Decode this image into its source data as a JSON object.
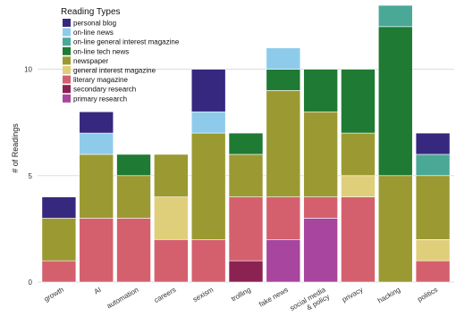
{
  "chart_data": {
    "type": "bar",
    "stacked": true,
    "categories": [
      "growth",
      "AI",
      "automation",
      "careers",
      "sexism",
      "trolling",
      "fake news",
      "social media\n& policy",
      "privacy",
      "hacking",
      "politics"
    ],
    "series": [
      {
        "name": "primary research",
        "color": "#a8459e",
        "values": [
          0,
          0,
          0,
          0,
          0,
          0,
          2,
          3,
          0,
          0,
          0
        ]
      },
      {
        "name": "secondary research",
        "color": "#8b2252",
        "values": [
          0,
          0,
          0,
          0,
          0,
          1,
          0,
          0,
          0,
          0,
          0
        ]
      },
      {
        "name": "literary magazine",
        "color": "#d4606e",
        "values": [
          1,
          3,
          3,
          2,
          2,
          3,
          2,
          1,
          4,
          0,
          1
        ]
      },
      {
        "name": "general interest magazine",
        "color": "#e0cf7a",
        "values": [
          0,
          0,
          0,
          2,
          0,
          0,
          0,
          0,
          1,
          0,
          1
        ]
      },
      {
        "name": "newspaper",
        "color": "#9b9a32",
        "values": [
          2,
          3,
          2,
          2,
          5,
          2,
          5,
          4,
          2,
          5,
          3
        ]
      },
      {
        "name": "on-line tech news",
        "color": "#1f7a33",
        "values": [
          0,
          0,
          1,
          0,
          0,
          1,
          1,
          2,
          3,
          7,
          0
        ]
      },
      {
        "name": "on-line general interest magazine",
        "color": "#4aa896",
        "values": [
          0,
          0,
          0,
          0,
          0,
          0,
          0,
          0,
          0,
          1,
          1
        ]
      },
      {
        "name": "on-line news",
        "color": "#8ecbeb",
        "values": [
          0,
          1,
          0,
          0,
          1,
          0,
          1,
          0,
          0,
          0,
          0
        ]
      },
      {
        "name": "personal blog",
        "color": "#36287f",
        "values": [
          1,
          1,
          0,
          0,
          2,
          0,
          0,
          0,
          0,
          0,
          1
        ]
      }
    ],
    "xlabel": "",
    "ylabel": "# of Readings",
    "ylim": [
      0,
      13
    ],
    "yticks": [
      0,
      5,
      10
    ],
    "grid": true,
    "legend_title": "Reading Types",
    "legend_order": [
      "personal blog",
      "on-line news",
      "on-line general interest magazine",
      "on-line tech news",
      "newspaper",
      "general interest magazine",
      "literary magazine",
      "secondary research",
      "primary research"
    ],
    "legend_placement": "top-left"
  }
}
